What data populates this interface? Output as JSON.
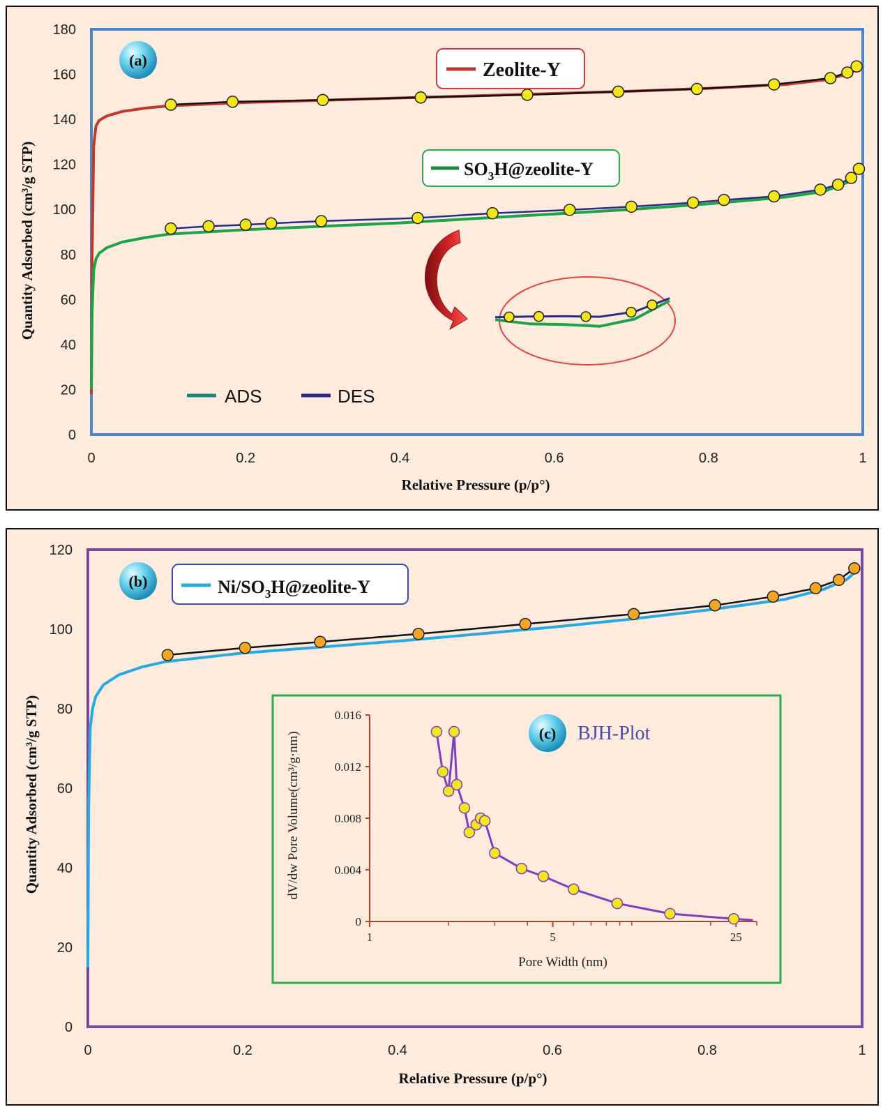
{
  "colors": {
    "background": "#fdebdd",
    "frame_a": "#4a86c8",
    "frame_b": "#7a4a9a",
    "zeolite_y": "#c0392b",
    "so3h": "#1ea34a",
    "ads": "#168a7a",
    "des": "#2a2a8a",
    "ni": "#29a9e1",
    "bjh": "#7b3fbf",
    "marker_fill": "#f4e61c",
    "marker_fill_b": "#f2a623",
    "inset_frame": "#2fa84f",
    "inset_axis": "#c0392b"
  },
  "chart_data": [
    {
      "id": "a",
      "type": "line",
      "panel_label": "(a)",
      "xlabel": "Relative Pressure (p/p°)",
      "ylabel": "Quantity Adsorbed (cm³/g STP)",
      "xlim": [
        0,
        1
      ],
      "ylim": [
        0,
        180
      ],
      "xticks": [
        "0",
        "0.2",
        "0.4",
        "0.6",
        "0.8",
        "1"
      ],
      "yticks": [
        "0",
        "20",
        "40",
        "60",
        "80",
        "100",
        "120",
        "140",
        "160",
        "180"
      ],
      "legend": {
        "zeolite": "Zeolite-Y",
        "so3h_prefix": "SO",
        "so3h_sub": "3",
        "so3h_suffix": "H@zeolite-Y",
        "ads": "ADS",
        "des": "DES"
      },
      "series": [
        {
          "name": "Zeolite-Y",
          "role": "adsorption",
          "x": [
            0.0,
            0.001,
            0.003,
            0.006,
            0.01,
            0.02,
            0.04,
            0.07,
            0.1,
            0.2,
            0.3,
            0.4,
            0.5,
            0.6,
            0.7,
            0.8,
            0.9,
            0.95,
            0.98,
            0.995
          ],
          "y": [
            18,
            80,
            128,
            137,
            139.5,
            141.5,
            143.5,
            145,
            146,
            147.5,
            148.5,
            149.5,
            150.5,
            151.5,
            152.5,
            153.8,
            155.5,
            157.5,
            160,
            163
          ]
        },
        {
          "name": "Zeolite-Y",
          "role": "desorption",
          "x": [
            0.103,
            0.183,
            0.3,
            0.427,
            0.565,
            0.683,
            0.785,
            0.885,
            0.958,
            0.98,
            0.992
          ],
          "y": [
            146.5,
            147.8,
            148.6,
            149.7,
            150.9,
            152.3,
            153.5,
            155.5,
            158.3,
            160.8,
            163.5
          ]
        },
        {
          "name": "SO3H@zeolite-Y",
          "role": "adsorption",
          "x": [
            0.0,
            0.001,
            0.003,
            0.006,
            0.01,
            0.02,
            0.04,
            0.07,
            0.1,
            0.2,
            0.3,
            0.4,
            0.5,
            0.6,
            0.7,
            0.8,
            0.9,
            0.95,
            0.98,
            0.995
          ],
          "y": [
            20,
            55,
            73,
            78,
            80.5,
            83,
            85.5,
            87.5,
            89,
            91,
            92.5,
            94,
            96,
            98,
            100,
            102.5,
            105.5,
            108,
            112,
            118
          ]
        },
        {
          "name": "SO3H@zeolite-Y",
          "role": "desorption",
          "x": [
            0.103,
            0.152,
            0.2,
            0.233,
            0.298,
            0.423,
            0.52,
            0.62,
            0.7,
            0.78,
            0.82,
            0.885,
            0.945,
            0.968,
            0.985,
            0.995
          ],
          "y": [
            91.5,
            92.5,
            93.2,
            93.8,
            94.8,
            96.2,
            98.3,
            99.8,
            101.2,
            103,
            104.2,
            105.8,
            108.8,
            111,
            114,
            118
          ]
        }
      ],
      "zoom_inset": {
        "x": [
          0.0,
          0.2,
          0.4,
          0.6,
          0.8,
          1.0
        ],
        "ads": [
          0.62,
          0.45,
          0.42,
          0.35,
          0.65,
          1.4
        ],
        "des": [
          0.72,
          0.75,
          0.76,
          0.74,
          0.95,
          1.5
        ]
      }
    },
    {
      "id": "b",
      "type": "line",
      "panel_label": "(b)",
      "xlabel": "Relative Pressure (p/p°)",
      "ylabel": "Quantity Adsorbed (cm³/g STP)",
      "xlim": [
        0,
        1
      ],
      "ylim": [
        0,
        120
      ],
      "xticks": [
        "0",
        "0.2",
        "0.4",
        "0.6",
        "0.8",
        "1"
      ],
      "yticks": [
        "0",
        "20",
        "40",
        "60",
        "80",
        "100",
        "120"
      ],
      "legend": {
        "ni_prefix": "Ni/SO",
        "ni_sub": "3",
        "ni_suffix": "H@zeolite-Y"
      },
      "series": [
        {
          "name": "Ni/SO3H@zeolite-Y",
          "role": "adsorption",
          "x": [
            0.0,
            0.001,
            0.003,
            0.006,
            0.01,
            0.02,
            0.04,
            0.07,
            0.1,
            0.2,
            0.3,
            0.4,
            0.5,
            0.6,
            0.7,
            0.8,
            0.9,
            0.95,
            0.98,
            0.995
          ],
          "y": [
            15,
            55,
            75,
            80,
            83,
            86,
            88.5,
            90.5,
            91.8,
            94,
            95.5,
            97,
            98.7,
            100.5,
            102.5,
            104.8,
            107.5,
            110,
            112.5,
            115
          ]
        },
        {
          "name": "Ni/SO3H@zeolite-Y",
          "role": "desorption",
          "x": [
            0.103,
            0.203,
            0.3,
            0.427,
            0.565,
            0.705,
            0.81,
            0.885,
            0.94,
            0.97,
            0.99
          ],
          "y": [
            93.5,
            95.3,
            96.8,
            98.8,
            101.3,
            103.8,
            106,
            108.2,
            110.3,
            112.4,
            115.3
          ]
        }
      ]
    },
    {
      "id": "c",
      "type": "line",
      "panel_label": "(c)",
      "title": "BJH-Plot",
      "xlabel": "Pore Width (nm)",
      "ylabel": "dV/dw Pore Volume(cm³/g·nm)",
      "xscale": "log",
      "xlim": [
        1,
        30
      ],
      "ylim": [
        0,
        0.016
      ],
      "xticks": [
        "1",
        "5",
        "25"
      ],
      "yticks": [
        "0",
        "0.004",
        "0.008",
        "0.012",
        "0.016"
      ],
      "series": [
        {
          "name": "BJH",
          "x": [
            1.8,
            1.9,
            2.0,
            2.1,
            2.15,
            2.3,
            2.4,
            2.55,
            2.65,
            2.75,
            3.0,
            3.8,
            4.6,
            6.0,
            8.8,
            14.0,
            24.5,
            29.0
          ],
          "y": [
            0.0147,
            0.0116,
            0.0101,
            0.0147,
            0.0106,
            0.0088,
            0.0069,
            0.0075,
            0.008,
            0.0078,
            0.0053,
            0.0041,
            0.0035,
            0.0025,
            0.0014,
            0.0006,
            0.0002,
            0.0001
          ]
        }
      ]
    }
  ]
}
